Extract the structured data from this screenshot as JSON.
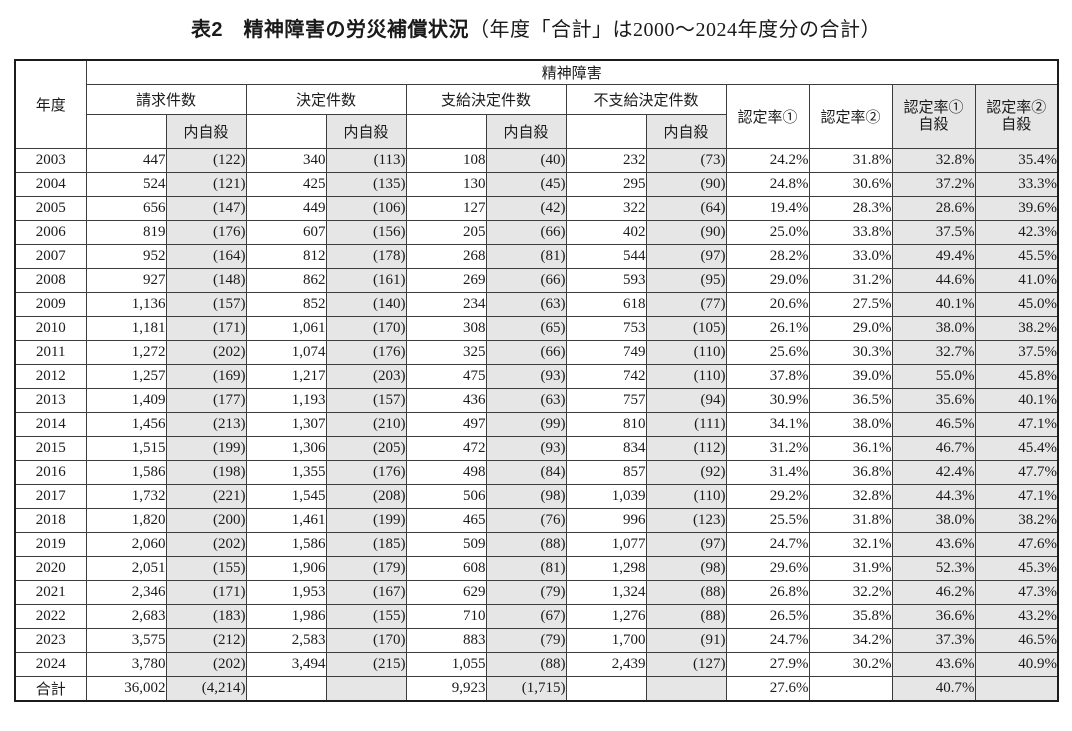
{
  "title": {
    "bold": "表2　精神障害の労災補償状況",
    "note": "（年度「合計」は2000～2024年度分の合計）"
  },
  "colors": {
    "shaded_cell": "#e6e6e6",
    "border": "#3c3c3c"
  },
  "table": {
    "header": {
      "year": "年度",
      "group": "精神障害",
      "cols": [
        {
          "label": "請求件数",
          "sub": "内自殺"
        },
        {
          "label": "決定件数",
          "sub": "内自殺"
        },
        {
          "label": "支給決定件数",
          "sub": "内自殺"
        },
        {
          "label": "不支給決定件数",
          "sub": "内自殺"
        }
      ],
      "rate1": "認定率①",
      "rate2": "認定率②",
      "rate1_suicide": [
        "認定率①",
        "自殺"
      ],
      "rate2_suicide": [
        "認定率②",
        "自殺"
      ]
    },
    "rows": [
      {
        "year": "2003",
        "values": [
          "447",
          "(122)",
          "340",
          "(113)",
          "108",
          "(40)",
          "232",
          "(73)",
          "24.2%",
          "31.8%",
          "32.8%",
          "35.4%"
        ]
      },
      {
        "year": "2004",
        "values": [
          "524",
          "(121)",
          "425",
          "(135)",
          "130",
          "(45)",
          "295",
          "(90)",
          "24.8%",
          "30.6%",
          "37.2%",
          "33.3%"
        ]
      },
      {
        "year": "2005",
        "values": [
          "656",
          "(147)",
          "449",
          "(106)",
          "127",
          "(42)",
          "322",
          "(64)",
          "19.4%",
          "28.3%",
          "28.6%",
          "39.6%"
        ]
      },
      {
        "year": "2006",
        "values": [
          "819",
          "(176)",
          "607",
          "(156)",
          "205",
          "(66)",
          "402",
          "(90)",
          "25.0%",
          "33.8%",
          "37.5%",
          "42.3%"
        ]
      },
      {
        "year": "2007",
        "values": [
          "952",
          "(164)",
          "812",
          "(178)",
          "268",
          "(81)",
          "544",
          "(97)",
          "28.2%",
          "33.0%",
          "49.4%",
          "45.5%"
        ]
      },
      {
        "year": "2008",
        "values": [
          "927",
          "(148)",
          "862",
          "(161)",
          "269",
          "(66)",
          "593",
          "(95)",
          "29.0%",
          "31.2%",
          "44.6%",
          "41.0%"
        ]
      },
      {
        "year": "2009",
        "values": [
          "1,136",
          "(157)",
          "852",
          "(140)",
          "234",
          "(63)",
          "618",
          "(77)",
          "20.6%",
          "27.5%",
          "40.1%",
          "45.0%"
        ]
      },
      {
        "year": "2010",
        "values": [
          "1,181",
          "(171)",
          "1,061",
          "(170)",
          "308",
          "(65)",
          "753",
          "(105)",
          "26.1%",
          "29.0%",
          "38.0%",
          "38.2%"
        ]
      },
      {
        "year": "2011",
        "values": [
          "1,272",
          "(202)",
          "1,074",
          "(176)",
          "325",
          "(66)",
          "749",
          "(110)",
          "25.6%",
          "30.3%",
          "32.7%",
          "37.5%"
        ]
      },
      {
        "year": "2012",
        "values": [
          "1,257",
          "(169)",
          "1,217",
          "(203)",
          "475",
          "(93)",
          "742",
          "(110)",
          "37.8%",
          "39.0%",
          "55.0%",
          "45.8%"
        ]
      },
      {
        "year": "2013",
        "values": [
          "1,409",
          "(177)",
          "1,193",
          "(157)",
          "436",
          "(63)",
          "757",
          "(94)",
          "30.9%",
          "36.5%",
          "35.6%",
          "40.1%"
        ]
      },
      {
        "year": "2014",
        "values": [
          "1,456",
          "(213)",
          "1,307",
          "(210)",
          "497",
          "(99)",
          "810",
          "(111)",
          "34.1%",
          "38.0%",
          "46.5%",
          "47.1%"
        ]
      },
      {
        "year": "2015",
        "values": [
          "1,515",
          "(199)",
          "1,306",
          "(205)",
          "472",
          "(93)",
          "834",
          "(112)",
          "31.2%",
          "36.1%",
          "46.7%",
          "45.4%"
        ]
      },
      {
        "year": "2016",
        "values": [
          "1,586",
          "(198)",
          "1,355",
          "(176)",
          "498",
          "(84)",
          "857",
          "(92)",
          "31.4%",
          "36.8%",
          "42.4%",
          "47.7%"
        ]
      },
      {
        "year": "2017",
        "values": [
          "1,732",
          "(221)",
          "1,545",
          "(208)",
          "506",
          "(98)",
          "1,039",
          "(110)",
          "29.2%",
          "32.8%",
          "44.3%",
          "47.1%"
        ]
      },
      {
        "year": "2018",
        "values": [
          "1,820",
          "(200)",
          "1,461",
          "(199)",
          "465",
          "(76)",
          "996",
          "(123)",
          "25.5%",
          "31.8%",
          "38.0%",
          "38.2%"
        ]
      },
      {
        "year": "2019",
        "values": [
          "2,060",
          "(202)",
          "1,586",
          "(185)",
          "509",
          "(88)",
          "1,077",
          "(97)",
          "24.7%",
          "32.1%",
          "43.6%",
          "47.6%"
        ]
      },
      {
        "year": "2020",
        "values": [
          "2,051",
          "(155)",
          "1,906",
          "(179)",
          "608",
          "(81)",
          "1,298",
          "(98)",
          "29.6%",
          "31.9%",
          "52.3%",
          "45.3%"
        ]
      },
      {
        "year": "2021",
        "values": [
          "2,346",
          "(171)",
          "1,953",
          "(167)",
          "629",
          "(79)",
          "1,324",
          "(88)",
          "26.8%",
          "32.2%",
          "46.2%",
          "47.3%"
        ]
      },
      {
        "year": "2022",
        "values": [
          "2,683",
          "(183)",
          "1,986",
          "(155)",
          "710",
          "(67)",
          "1,276",
          "(88)",
          "26.5%",
          "35.8%",
          "36.6%",
          "43.2%"
        ]
      },
      {
        "year": "2023",
        "values": [
          "3,575",
          "(212)",
          "2,583",
          "(170)",
          "883",
          "(79)",
          "1,700",
          "(91)",
          "24.7%",
          "34.2%",
          "37.3%",
          "46.5%"
        ]
      },
      {
        "year": "2024",
        "values": [
          "3,780",
          "(202)",
          "3,494",
          "(215)",
          "1,055",
          "(88)",
          "2,439",
          "(127)",
          "27.9%",
          "30.2%",
          "43.6%",
          "40.9%"
        ]
      },
      {
        "year": "合計",
        "values": [
          "36,002",
          "(4,214)",
          "",
          "",
          "9,923",
          "(1,715)",
          "",
          "",
          "27.6%",
          "",
          "40.7%",
          ""
        ]
      }
    ]
  }
}
